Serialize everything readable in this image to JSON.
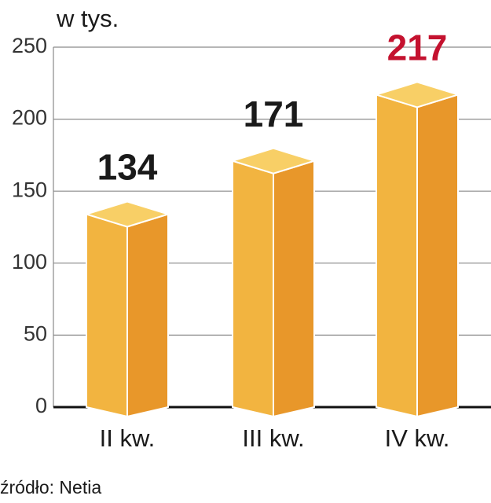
{
  "chart_data": {
    "type": "bar3d",
    "unit_label": "w tys.",
    "source": "źródło: Netia",
    "categories": [
      "II kw.",
      "III kw.",
      "IV kw."
    ],
    "values": [
      134,
      171,
      217
    ],
    "value_label_colors": [
      "#1a1a1a",
      "#1a1a1a",
      "#c4122f"
    ],
    "colors": {
      "left": "#f2b440",
      "right": "#e8972a",
      "top": "#f8cf66"
    },
    "ylim": [
      0,
      250
    ],
    "yticks": [
      0,
      50,
      100,
      150,
      200,
      250
    ],
    "grid": true
  }
}
